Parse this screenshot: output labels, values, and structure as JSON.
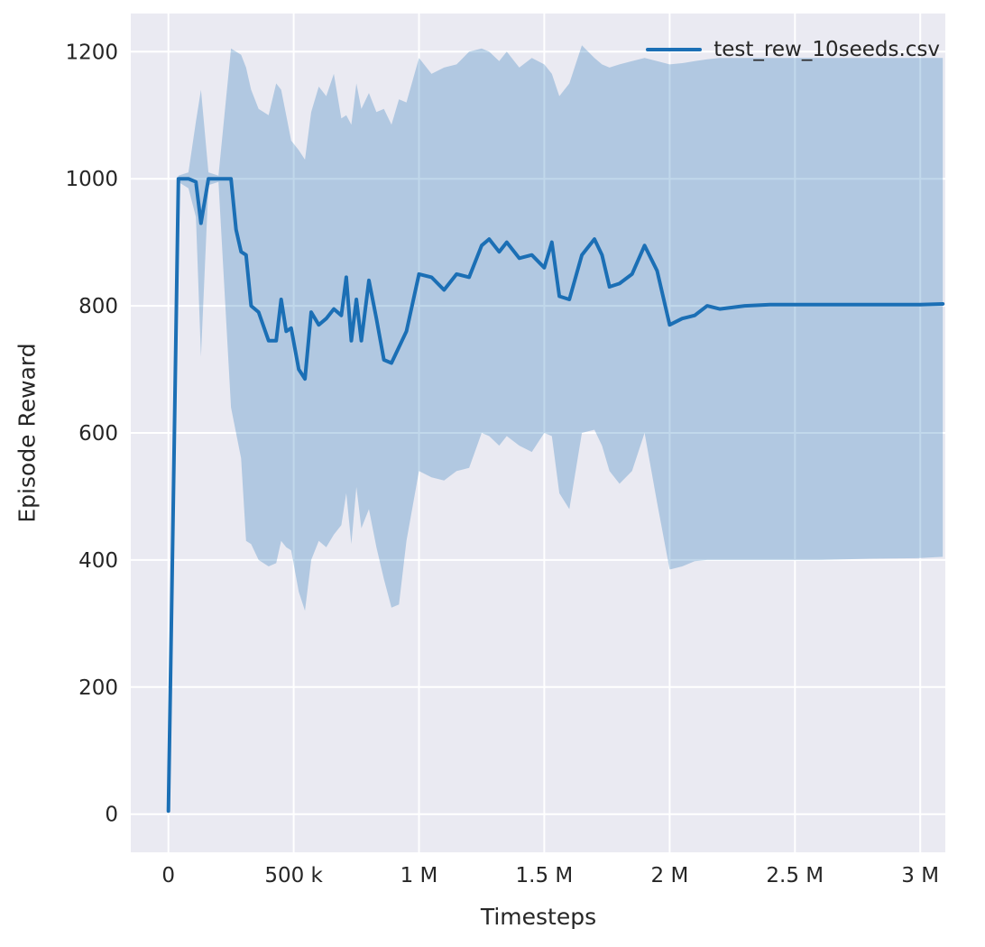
{
  "chart_data": {
    "type": "line",
    "title": "",
    "xlabel": "Timesteps",
    "ylabel": "Episode Reward",
    "xlim": [
      -150000,
      3100000
    ],
    "ylim": [
      -60,
      1260
    ],
    "xticks": [
      0,
      500000,
      1000000,
      1500000,
      2000000,
      2500000,
      3000000
    ],
    "xtick_labels": [
      "0",
      "500 k",
      "1 M",
      "1.5 M",
      "2 M",
      "2.5 M",
      "3 M"
    ],
    "yticks": [
      0,
      200,
      400,
      600,
      800,
      1000,
      1200
    ],
    "grid": true,
    "legend": {
      "label": "test_rew_10seeds.csv",
      "position": "upper right"
    },
    "style": {
      "line": "#1b6fb5",
      "band_opacity": 0.27,
      "plot_bg": "#eaeaf2",
      "grid_color": "#ffffff",
      "text": "#262626"
    },
    "series": [
      {
        "name": "test_rew_10seeds.csv",
        "x": [
          0,
          40000,
          80000,
          110000,
          130000,
          160000,
          200000,
          250000,
          270000,
          290000,
          310000,
          330000,
          360000,
          400000,
          430000,
          450000,
          470000,
          490000,
          520000,
          545000,
          570000,
          600000,
          630000,
          660000,
          690000,
          710000,
          730000,
          750000,
          770000,
          800000,
          830000,
          860000,
          890000,
          920000,
          950000,
          1000000,
          1050000,
          1100000,
          1150000,
          1200000,
          1250000,
          1280000,
          1320000,
          1350000,
          1400000,
          1450000,
          1500000,
          1530000,
          1560000,
          1600000,
          1650000,
          1700000,
          1730000,
          1760000,
          1800000,
          1850000,
          1900000,
          1950000,
          2000000,
          2050000,
          2100000,
          2150000,
          2200000,
          2300000,
          2400000,
          2600000,
          2800000,
          3000000,
          3090000
        ],
        "mean": [
          5,
          1000,
          1000,
          995,
          930,
          1000,
          1000,
          1000,
          920,
          885,
          880,
          800,
          790,
          745,
          745,
          810,
          760,
          765,
          700,
          685,
          790,
          770,
          780,
          795,
          785,
          845,
          745,
          810,
          745,
          840,
          780,
          715,
          710,
          735,
          760,
          850,
          845,
          825,
          850,
          845,
          895,
          905,
          885,
          900,
          875,
          880,
          860,
          900,
          815,
          810,
          880,
          905,
          880,
          830,
          835,
          850,
          895,
          855,
          770,
          780,
          785,
          800,
          795,
          800,
          802,
          802,
          802,
          802,
          803
        ],
        "lower": [
          5,
          995,
          985,
          940,
          720,
          990,
          995,
          640,
          600,
          560,
          430,
          425,
          400,
          390,
          395,
          430,
          420,
          415,
          350,
          320,
          400,
          430,
          420,
          440,
          455,
          505,
          425,
          515,
          450,
          480,
          420,
          370,
          325,
          330,
          430,
          540,
          530,
          525,
          540,
          545,
          600,
          595,
          580,
          595,
          580,
          570,
          600,
          595,
          505,
          480,
          600,
          605,
          580,
          540,
          520,
          540,
          600,
          490,
          385,
          390,
          398,
          400,
          400,
          400,
          400,
          400,
          402,
          403,
          405
        ],
        "upper": [
          5,
          1005,
          1010,
          1090,
          1140,
          1010,
          1005,
          1205,
          1200,
          1195,
          1175,
          1140,
          1110,
          1100,
          1150,
          1140,
          1100,
          1060,
          1045,
          1030,
          1105,
          1145,
          1130,
          1165,
          1095,
          1100,
          1085,
          1150,
          1110,
          1135,
          1105,
          1110,
          1085,
          1125,
          1120,
          1190,
          1165,
          1175,
          1180,
          1200,
          1205,
          1200,
          1185,
          1200,
          1175,
          1190,
          1180,
          1165,
          1130,
          1150,
          1210,
          1190,
          1180,
          1175,
          1180,
          1185,
          1190,
          1185,
          1180,
          1182,
          1185,
          1188,
          1190,
          1190,
          1190,
          1190,
          1190,
          1190,
          1190
        ]
      }
    ]
  }
}
